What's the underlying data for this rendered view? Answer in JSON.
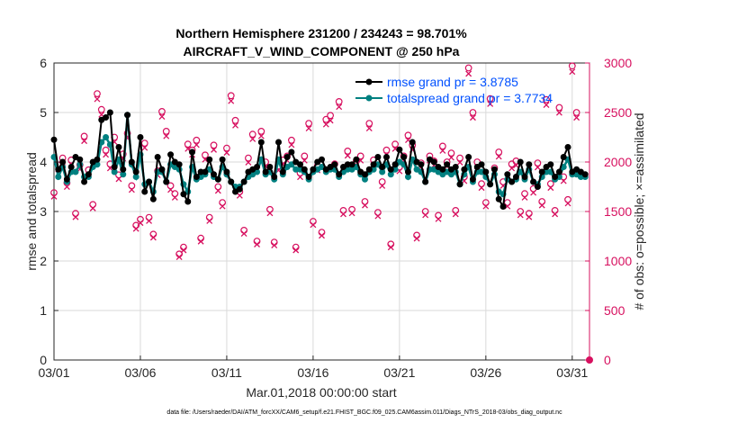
{
  "title_line1": "Northern Hemisphere 231200 / 234243 = 98.701%",
  "title_line2": "AIRCRAFT_V_WIND_COMPONENT @ 250 hPa",
  "footer": "data file: /Users/raeder/DAI/ATM_forcXX/CAM6_setup/f.e21.FHIST_BGC.f09_025.CAM6assim.011/Diags_NTrS_2018-03/obs_diag_output.nc",
  "colors": {
    "rmse": "#000000",
    "spread": "#008080",
    "obs": "#d7105f",
    "legend_text": "#0050ff",
    "grid": "#d9d9d9"
  },
  "chart_data": {
    "type": "line",
    "x_days": [
      0.0,
      0.25,
      0.5,
      0.75,
      1.0,
      1.25,
      1.5,
      1.75,
      2.0,
      2.25,
      2.5,
      2.75,
      3.0,
      3.25,
      3.5,
      3.75,
      4.0,
      4.25,
      4.5,
      4.75,
      5.0,
      5.25,
      5.5,
      5.75,
      6.0,
      6.25,
      6.5,
      6.75,
      7.0,
      7.25,
      7.5,
      7.75,
      8.0,
      8.25,
      8.5,
      8.75,
      9.0,
      9.25,
      9.5,
      9.75,
      10.0,
      10.25,
      10.5,
      10.75,
      11.0,
      11.25,
      11.5,
      11.75,
      12.0,
      12.25,
      12.5,
      12.75,
      13.0,
      13.25,
      13.5,
      13.75,
      14.0,
      14.25,
      14.5,
      14.75,
      15.0,
      15.25,
      15.5,
      15.75,
      16.0,
      16.25,
      16.5,
      16.75,
      17.0,
      17.25,
      17.5,
      17.75,
      18.0,
      18.25,
      18.5,
      18.75,
      19.0,
      19.25,
      19.5,
      19.75,
      20.0,
      20.25,
      20.5,
      20.75,
      21.0,
      21.25,
      21.5,
      21.75,
      22.0,
      22.25,
      22.5,
      22.75,
      23.0,
      23.25,
      23.5,
      23.75,
      24.0,
      24.25,
      24.5,
      24.75,
      25.0,
      25.25,
      25.5,
      25.75,
      26.0,
      26.25,
      26.5,
      26.75,
      27.0,
      27.25,
      27.5,
      27.75,
      28.0,
      28.25,
      28.5,
      28.75,
      29.0,
      29.25,
      29.5,
      29.75,
      30.0,
      30.25,
      30.5,
      30.75
    ],
    "xlim": [
      0,
      31
    ],
    "xticks": [
      0,
      5,
      10,
      15,
      20,
      25,
      30
    ],
    "xticklabels": [
      "03/01",
      "03/06",
      "03/11",
      "03/16",
      "03/21",
      "03/26",
      "03/31"
    ],
    "xlabel": "Mar.01,2018 00:00:00 start",
    "ylim": [
      0,
      6
    ],
    "yticks": [
      0,
      1,
      2,
      3,
      4,
      5,
      6
    ],
    "ylabel": "rmse and totalspread",
    "y2lim": [
      0,
      3000
    ],
    "y2ticks": [
      0,
      500,
      1000,
      1500,
      2000,
      2500,
      3000
    ],
    "y2label": "# of obs: o=possible; ×=assimilated",
    "series": [
      {
        "name": "rmse grand pr = 3.8785",
        "values": [
          4.45,
          3.85,
          4.0,
          3.65,
          3.9,
          4.1,
          4.05,
          3.6,
          3.75,
          4.0,
          4.05,
          4.85,
          4.9,
          5.0,
          3.9,
          4.3,
          3.85,
          4.95,
          4.0,
          3.8,
          4.5,
          3.4,
          3.6,
          3.25,
          4.1,
          3.85,
          3.6,
          4.15,
          4.0,
          3.95,
          3.35,
          3.2,
          4.2,
          3.7,
          3.8,
          3.8,
          4.05,
          3.75,
          3.65,
          4.05,
          3.8,
          3.6,
          3.4,
          3.45,
          3.6,
          3.8,
          3.85,
          3.9,
          4.4,
          3.8,
          3.9,
          3.7,
          4.4,
          3.8,
          4.1,
          4.2,
          4.0,
          3.95,
          3.85,
          3.7,
          3.85,
          4.0,
          4.05,
          3.85,
          3.9,
          3.95,
          3.75,
          3.9,
          3.95,
          3.95,
          4.05,
          3.8,
          3.75,
          3.85,
          3.95,
          4.1,
          3.9,
          4.1,
          3.85,
          3.95,
          4.25,
          4.1,
          3.8,
          4.4,
          4.0,
          3.95,
          3.6,
          4.05,
          4.0,
          3.9,
          3.85,
          3.95,
          3.85,
          3.9,
          3.55,
          3.85,
          4.1,
          3.65,
          3.9,
          3.95,
          3.8,
          3.55,
          3.85,
          3.25,
          3.1,
          3.75,
          3.6,
          3.7,
          4.0,
          3.7,
          3.95,
          3.6,
          3.5,
          3.8,
          3.9,
          3.95,
          3.7,
          3.8,
          4.1,
          4.3,
          3.8,
          3.85,
          3.8,
          3.75
        ]
      },
      {
        "name": "totalspread grand pr = 3.7734",
        "values": [
          4.1,
          3.7,
          3.9,
          3.6,
          3.8,
          3.8,
          3.95,
          3.7,
          3.7,
          3.9,
          3.95,
          4.4,
          4.5,
          4.35,
          3.8,
          4.05,
          3.75,
          4.95,
          3.95,
          3.7,
          4.15,
          3.55,
          3.6,
          3.4,
          3.8,
          3.8,
          3.6,
          3.95,
          3.9,
          3.85,
          3.55,
          3.4,
          3.9,
          3.65,
          3.7,
          3.75,
          3.85,
          3.7,
          3.65,
          3.9,
          3.75,
          3.6,
          3.5,
          3.5,
          3.6,
          3.7,
          3.75,
          3.8,
          4.05,
          3.75,
          3.8,
          3.65,
          4.05,
          3.75,
          3.9,
          3.95,
          3.85,
          3.85,
          3.8,
          3.65,
          3.8,
          3.85,
          3.9,
          3.8,
          3.85,
          3.85,
          3.7,
          3.8,
          3.85,
          3.85,
          3.9,
          3.75,
          3.65,
          3.8,
          3.85,
          3.95,
          3.8,
          3.95,
          3.75,
          3.85,
          4.0,
          3.95,
          3.7,
          4.05,
          3.85,
          3.8,
          3.6,
          3.85,
          3.85,
          3.8,
          3.75,
          3.8,
          3.75,
          3.8,
          3.55,
          3.75,
          3.9,
          3.6,
          3.8,
          3.8,
          3.7,
          3.55,
          3.75,
          3.4,
          3.35,
          3.65,
          3.6,
          3.65,
          3.8,
          3.65,
          3.85,
          3.6,
          3.55,
          3.7,
          3.8,
          3.8,
          3.65,
          3.7,
          3.9,
          4.05,
          3.75,
          3.75,
          3.7,
          3.7
        ]
      }
    ],
    "obs_possible": [
      1690,
      1970,
      2040,
      1790,
      2020,
      1480,
      1970,
      2260,
      1920,
      1570,
      2690,
      2530,
      2120,
      1980,
      2250,
      1870,
      2080,
      2290,
      1760,
      1360,
      1420,
      2190,
      1440,
      1270,
      1910,
      2510,
      2310,
      1760,
      1680,
      1070,
      1140,
      2180,
      2120,
      2220,
      1230,
      2070,
      1440,
      2170,
      1750,
      1590,
      2140,
      2670,
      2420,
      1700,
      1310,
      2040,
      2280,
      1200,
      2310,
      2000,
      1520,
      1190,
      1960,
      2020,
      2060,
      2220,
      1140,
      1890,
      2060,
      2390,
      1400,
      1960,
      1290,
      2430,
      2470,
      1980,
      2610,
      1510,
      2110,
      1520,
      2010,
      2060,
      1600,
      2390,
      2020,
      1490,
      1800,
      2120,
      1170,
      2180,
      1950,
      2060,
      2270,
      2170,
      1260,
      1990,
      1500,
      2060,
      2010,
      1460,
      2160,
      2000,
      2090,
      1510,
      2040,
      1850,
      2950,
      2500,
      2000,
      1780,
      1590,
      2640,
      1940,
      2100,
      1800,
      1590,
      1980,
      2010,
      1500,
      1680,
      1480,
      1730,
      1990,
      1600,
      2630,
      1780,
      1510,
      2550,
      1850,
      1620,
      2970,
      2500
    ]
  }
}
